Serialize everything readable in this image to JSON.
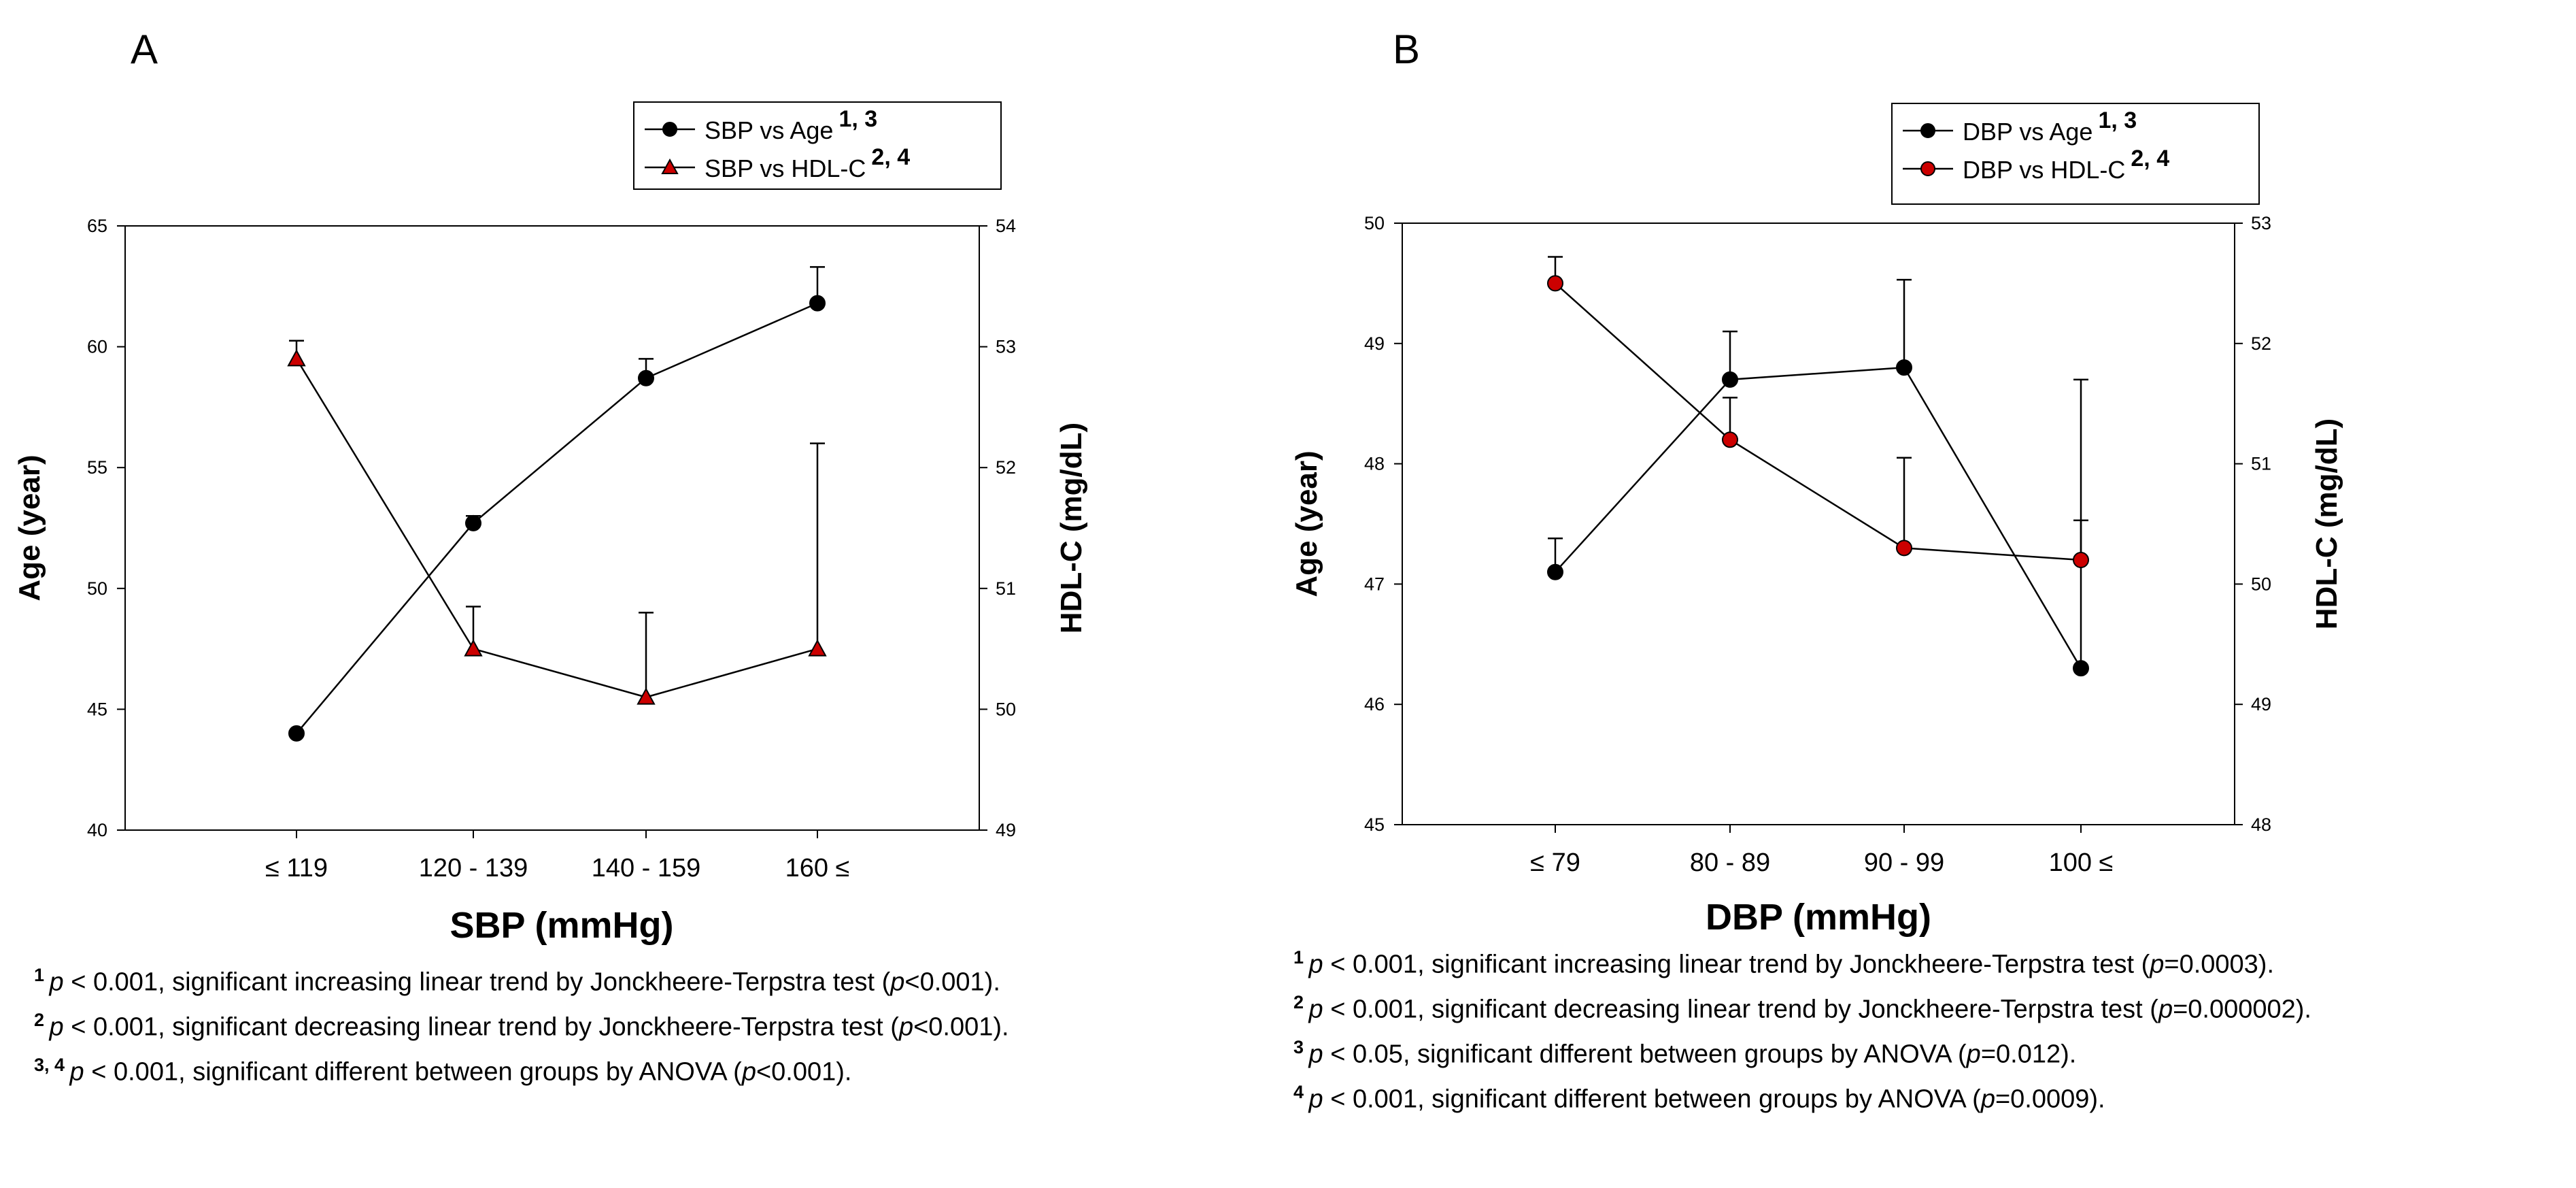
{
  "panels": [
    {
      "letter": "A",
      "chart_data": {
        "type": "line",
        "categories": [
          "≤ 119",
          "120 - 139",
          "140 - 159",
          "160 ≤"
        ],
        "xlabel": "SBP (mmHg)",
        "ylabel_left": "Age (year)",
        "ylabel_right": "HDL-C (mg/dL)",
        "ylim_left": [
          40,
          65
        ],
        "yticks_left": [
          "40",
          "45",
          "50",
          "55",
          "60",
          "65"
        ],
        "ylim_right": [
          49,
          54
        ],
        "yticks_right": [
          "49",
          "50",
          "51",
          "52",
          "53",
          "54"
        ],
        "series": [
          {
            "name": "SBP vs Age",
            "sup": "1, 3",
            "axis": "left",
            "marker": "circle",
            "color": "#000000",
            "values": [
              44.0,
              52.7,
              58.7,
              61.8
            ],
            "error": [
              null,
              0.3,
              0.8,
              1.5
            ]
          },
          {
            "name": "SBP vs HDL-C",
            "sup": "2, 4",
            "axis": "right",
            "marker": "triangle",
            "color": "#cc0000",
            "values": [
              52.9,
              50.5,
              50.1,
              50.5
            ],
            "error": [
              0.15,
              0.35,
              0.7,
              1.7
            ]
          }
        ]
      },
      "footnotes": [
        {
          "sup": "1",
          "p": "p",
          "mid": " < 0.001, significant increasing linear trend by Jonckheere-Terpstra test (",
          "p2": "p",
          "end": "<0.001)."
        },
        {
          "sup": "2",
          "p": "p",
          "mid": " < 0.001, significant decreasing linear trend by Jonckheere-Terpstra test (",
          "p2": "p",
          "end": "<0.001)."
        },
        {
          "sup": "3, 4",
          "p": "p",
          "mid": " < 0.001, significant different between groups by ANOVA (",
          "p2": "p",
          "end": "<0.001)."
        }
      ]
    },
    {
      "letter": "B",
      "chart_data": {
        "type": "line",
        "categories": [
          "≤ 79",
          "80 - 89",
          "90 - 99",
          "100 ≤"
        ],
        "xlabel": "DBP (mmHg)",
        "ylabel_left": "Age (year)",
        "ylabel_right": "HDL-C (mg/dL)",
        "ylim_left": [
          45,
          50
        ],
        "yticks_left": [
          "45",
          "46",
          "47",
          "48",
          "49",
          "50"
        ],
        "ylim_right": [
          48,
          53
        ],
        "yticks_right": [
          "48",
          "49",
          "50",
          "51",
          "52",
          "53"
        ],
        "series": [
          {
            "name": "DBP vs Age",
            "sup": "1, 3",
            "axis": "left",
            "marker": "circle",
            "color": "#000000",
            "values": [
              47.1,
              48.7,
              48.8,
              46.3
            ],
            "error": [
              0.28,
              0.4,
              0.73,
              2.4
            ]
          },
          {
            "name": "DBP vs HDL-C",
            "sup": "2, 4",
            "axis": "right",
            "marker": "circle",
            "color": "#cc0000",
            "values": [
              52.5,
              51.2,
              50.3,
              50.2
            ],
            "error": [
              0.22,
              0.35,
              0.75,
              0.33
            ]
          }
        ]
      },
      "footnotes": [
        {
          "sup": "1",
          "p": "p",
          "mid": " < 0.001, significant increasing linear trend by Jonckheere-Terpstra test (",
          "p2": "p",
          "end": "=0.0003)."
        },
        {
          "sup": "2",
          "p": "p",
          "mid": " < 0.001, significant decreasing linear trend by Jonckheere-Terpstra test (",
          "p2": "p",
          "end": "=0.000002)."
        },
        {
          "sup": "3",
          "p": "p",
          "mid": " < 0.05, significant different between groups by ANOVA (",
          "p2": "p",
          "end": "=0.012)."
        },
        {
          "sup": "4",
          "p": "p",
          "mid": " < 0.001, significant different between groups by ANOVA (",
          "p2": "p",
          "end": "=0.0009)."
        }
      ]
    }
  ]
}
